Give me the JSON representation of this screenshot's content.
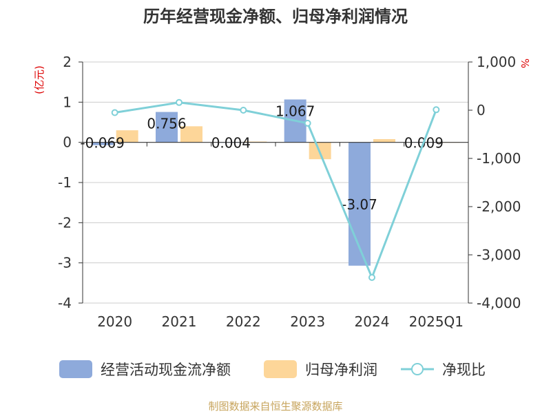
{
  "chart_data": {
    "type": "bar",
    "title": "历年经营现金净额、归母净利润情况",
    "categories": [
      "2020",
      "2021",
      "2022",
      "2023",
      "2024",
      "2025Q1"
    ],
    "left_axis": {
      "unit": "(亿元)",
      "ylim": [
        -4,
        2
      ],
      "ticks": [
        "2",
        "1",
        "0",
        "-1",
        "-2",
        "-3",
        "-4"
      ]
    },
    "right_axis": {
      "unit": "%",
      "ylim": [
        -4000,
        1000
      ],
      "ticks": [
        "1,000",
        "0",
        "-1,000",
        "-2,000",
        "-3,000",
        "-4,000"
      ]
    },
    "series": [
      {
        "name": "经营活动现金流净额",
        "type": "bar",
        "axis": "left",
        "color": "#8eaadb",
        "values": [
          -0.069,
          0.756,
          0.004,
          1.067,
          -3.07,
          0.009
        ],
        "labels": [
          "-0.069",
          "0.756",
          "0.004",
          "1.067",
          "-3.07",
          "0.009"
        ]
      },
      {
        "name": "归母净利润",
        "type": "bar",
        "axis": "left",
        "color": "#fdd699",
        "values": [
          0.3,
          0.4,
          0.02,
          -0.42,
          0.08,
          0.005
        ]
      },
      {
        "name": "净现比",
        "type": "line",
        "axis": "right",
        "color": "#7fd0d8",
        "values": [
          -50,
          160,
          0,
          -270,
          -3470,
          10
        ]
      }
    ],
    "source": "制图数据来自恒生聚源数据库"
  },
  "colors": {
    "grid": "#cccccc",
    "axis": "#333333",
    "unit": "#dd0000",
    "title": "#333333",
    "source": "#c7a45c"
  }
}
